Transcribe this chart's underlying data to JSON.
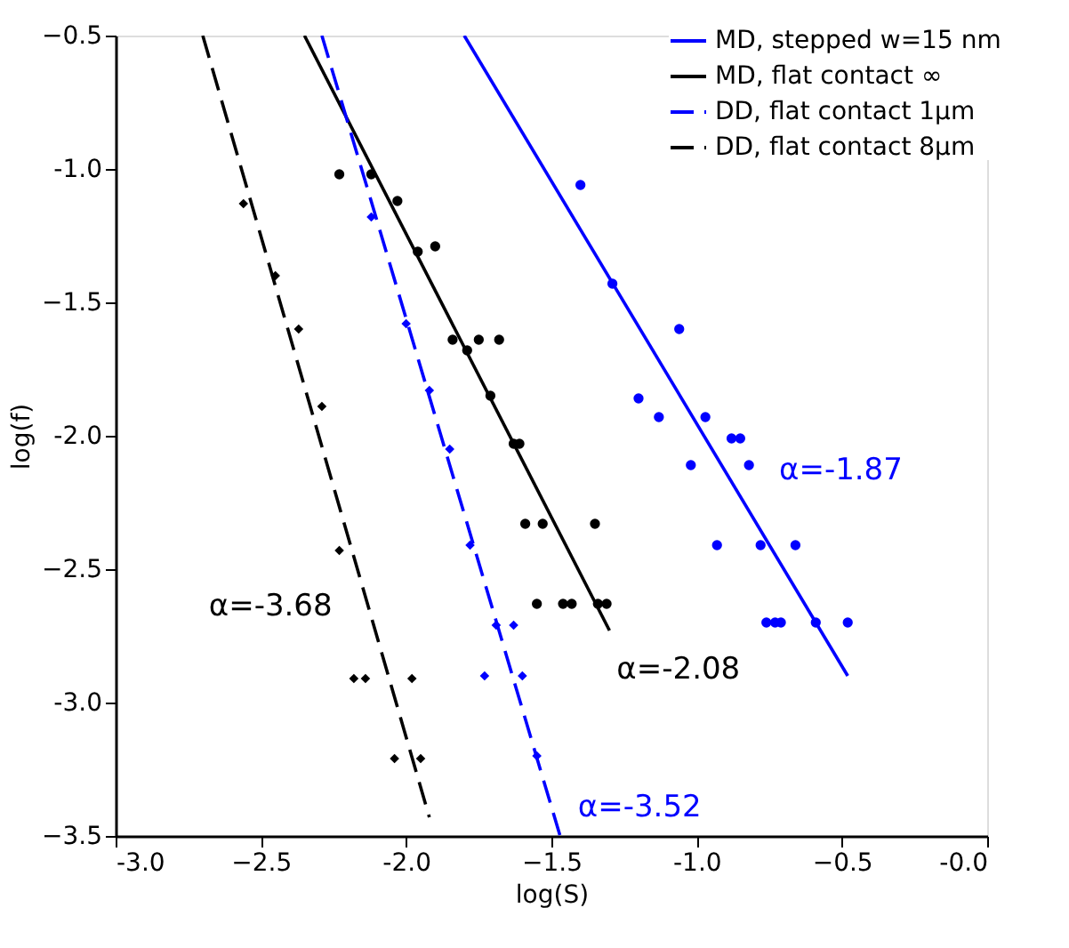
{
  "chart_data": {
    "type": "line",
    "xlabel": "log(S)",
    "ylabel": "log(f)",
    "xlim": [
      -3.0,
      0.0
    ],
    "ylim": [
      -3.5,
      -0.5
    ],
    "xticks": [
      {
        "value": -3,
        "label": "-3.0"
      },
      -2.5,
      {
        "value": -2,
        "label": "-2.0"
      },
      -1.5,
      {
        "value": -1,
        "label": "-1.0"
      },
      -0.5,
      {
        "value": 0,
        "label": "-0.0"
      }
    ],
    "yticks": [
      -3.5,
      {
        "value": -3,
        "label": "-3.0"
      },
      -2.5,
      {
        "value": -2,
        "label": "-2.0"
      },
      -1.5,
      {
        "value": -1,
        "label": "-1.0"
      },
      -0.5
    ],
    "grid": false,
    "legend": "top right",
    "series": [
      {
        "name": "MD, stepped w=15 nm",
        "color": "#0000ff",
        "line_style": "solid",
        "x": [
          -1.8,
          -0.48
        ],
        "values": [
          -0.5,
          -2.9
        ]
      },
      {
        "name": "MD, flat contact ∞",
        "color": "#000000",
        "line_style": "solid",
        "x": [
          -2.35,
          -1.3
        ],
        "values": [
          -0.5,
          -2.73
        ]
      },
      {
        "name": "DD, flat contact 1µm",
        "color": "#0000ff",
        "line_style": "dashed",
        "x": [
          -2.29,
          -1.47
        ],
        "values": [
          -0.5,
          -3.5
        ]
      },
      {
        "name": "DD, flat contact 8µm",
        "color": "#000000",
        "line_style": "dashed",
        "x": [
          -2.7,
          -1.92
        ],
        "values": [
          -0.5,
          -3.43
        ]
      },
      {
        "type": "scatter",
        "color": "#0000ff",
        "marker": "circle",
        "x": [
          -1.4,
          -1.29,
          -1.06,
          -1.2,
          -1.13,
          -0.97,
          -0.88,
          -0.85,
          -1.02,
          -0.82,
          -0.93,
          -0.78,
          -0.66,
          -0.76,
          -0.71,
          -0.73,
          -0.59,
          -0.48
        ],
        "values": [
          -1.06,
          -1.43,
          -1.6,
          -1.86,
          -1.93,
          -1.93,
          -2.01,
          -2.01,
          -2.11,
          -2.11,
          -2.41,
          -2.41,
          -2.41,
          -2.7,
          -2.7,
          -2.7,
          -2.7,
          -2.7
        ]
      },
      {
        "type": "scatter",
        "color": "#000000",
        "marker": "circle",
        "x": [
          -2.23,
          -2.12,
          -2.03,
          -1.96,
          -1.9,
          -1.84,
          -1.79,
          -1.75,
          -1.68,
          -1.71,
          -1.63,
          -1.61,
          -1.59,
          -1.53,
          -1.35,
          -1.55,
          -1.46,
          -1.43,
          -1.34,
          -1.31
        ],
        "values": [
          -1.02,
          -1.02,
          -1.12,
          -1.31,
          -1.29,
          -1.64,
          -1.68,
          -1.64,
          -1.64,
          -1.85,
          -2.03,
          -2.03,
          -2.33,
          -2.33,
          -2.33,
          -2.63,
          -2.63,
          -2.63,
          -2.63,
          -2.63
        ]
      },
      {
        "type": "scatter",
        "color": "#0000ff",
        "marker": "diamond",
        "x": [
          -2.12,
          -2.0,
          -1.92,
          -1.85,
          -1.78,
          -1.69,
          -1.63,
          -1.73,
          -1.6,
          -1.55
        ],
        "values": [
          -1.18,
          -1.58,
          -1.83,
          -2.05,
          -2.41,
          -2.71,
          -2.71,
          -2.9,
          -2.9,
          -3.2
        ]
      },
      {
        "type": "scatter",
        "color": "#000000",
        "marker": "diamond",
        "x": [
          -2.56,
          -2.45,
          -2.37,
          -2.29,
          -2.23,
          -2.18,
          -2.14,
          -1.98,
          -2.04,
          -1.95
        ],
        "values": [
          -1.13,
          -1.4,
          -1.6,
          -1.89,
          -2.43,
          -2.91,
          -2.91,
          -2.91,
          -3.21,
          -3.21
        ]
      }
    ],
    "annotations": [
      {
        "text": "α=-3.68",
        "x": -2.13,
        "y": -2.64
      },
      {
        "text": "α=-2.08",
        "x": -1.3,
        "y": -2.73
      },
      {
        "text": "α=-1.87",
        "x": -0.9,
        "y": -2.13
      },
      {
        "text": "α=-3.52",
        "x": -1.47,
        "y": -3.5
      }
    ]
  }
}
